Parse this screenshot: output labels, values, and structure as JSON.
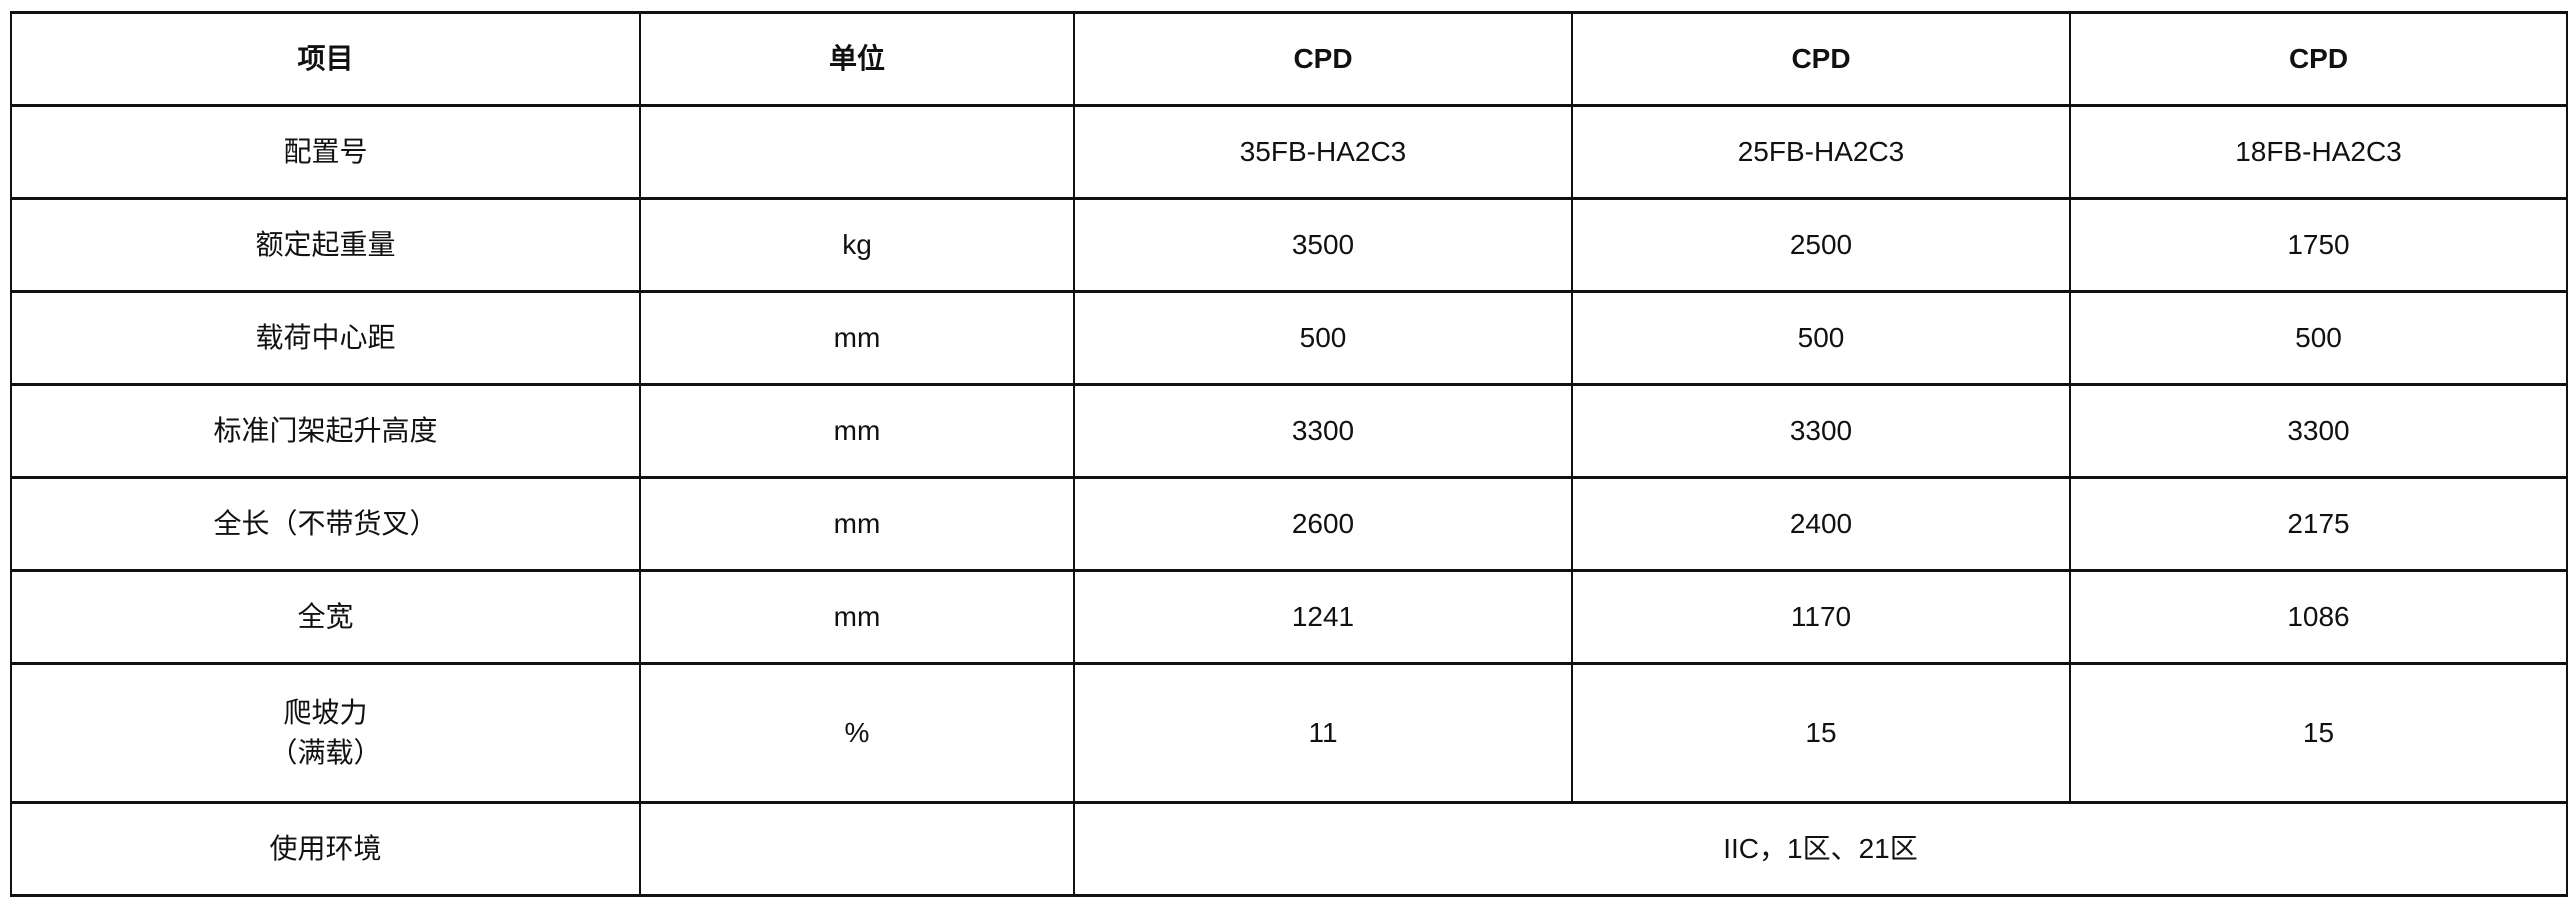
{
  "table": {
    "headers": [
      "项目",
      "单位",
      "CPD",
      "CPD",
      "CPD"
    ],
    "rows": [
      {
        "item": "配置号",
        "unit": "",
        "values": [
          "35FB-HA2C3",
          "25FB-HA2C3",
          "18FB-HA2C3"
        ]
      },
      {
        "item": "额定起重量",
        "unit": "kg",
        "values": [
          "3500",
          "2500",
          "1750"
        ]
      },
      {
        "item": "载荷中心距",
        "unit": "mm",
        "values": [
          "500",
          "500",
          "500"
        ]
      },
      {
        "item": "标准门架起升高度",
        "unit": "mm",
        "values": [
          "3300",
          "3300",
          "3300"
        ]
      },
      {
        "item": "全长（不带货叉）",
        "unit": "mm",
        "values": [
          "2600",
          "2400",
          "2175"
        ]
      },
      {
        "item": "全宽",
        "unit": "mm",
        "values": [
          "1241",
          "1170",
          "1086"
        ]
      },
      {
        "item_line1": "爬坡力",
        "item_line2": "（满载）",
        "unit": "%",
        "values": [
          "11",
          "15",
          "15"
        ]
      },
      {
        "item": "使用环境",
        "unit": "",
        "merged_value": "IIC，1区、21区"
      }
    ]
  }
}
